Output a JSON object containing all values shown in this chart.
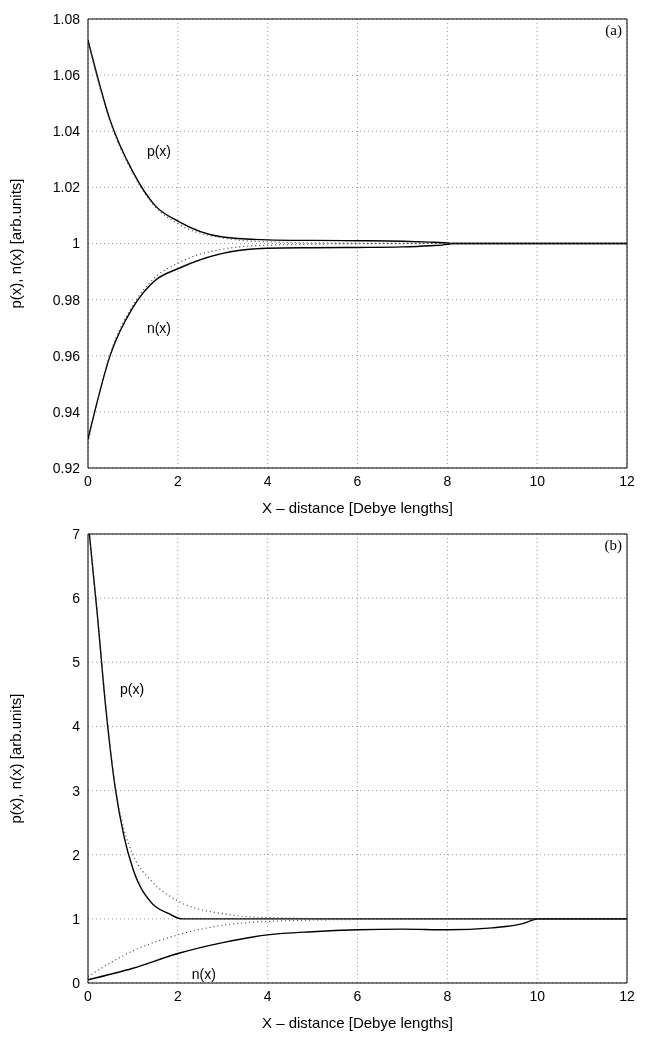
{
  "chart_data": [
    {
      "type": "line",
      "xlabel": "X – distance [Debye lengths]",
      "ylabel": "p(x), n(x) [arb.units]",
      "annotations": [
        "(a)"
      ],
      "xlim": [
        0,
        12
      ],
      "xticks": [
        0,
        2,
        4,
        6,
        8,
        10,
        12
      ],
      "ylim": [
        0.92,
        1.08
      ],
      "yticks": [
        0.92,
        0.94,
        0.96,
        0.98,
        1,
        1.02,
        1.04,
        1.06,
        1.08
      ],
      "grid": true,
      "legend": false,
      "marker": "none",
      "series": [
        {
          "name": "p(x)",
          "color": "#000000",
          "line_style": "solid",
          "x": [
            0,
            0.5,
            1,
            1.5,
            2,
            3,
            4,
            5,
            6,
            7,
            7.6,
            8,
            8.1,
            9,
            10,
            12
          ],
          "values": [
            1.0725,
            1.0436,
            1.0255,
            1.0134,
            1.008,
            1.0023,
            1.0013,
            1.0011,
            1.001,
            1.0008,
            1.0005,
            1.0002,
            1.0,
            1.0,
            1.0,
            1.0
          ]
        },
        {
          "name": "n(x)",
          "color": "#000000",
          "line_style": "solid",
          "x": [
            0,
            0.5,
            1,
            1.5,
            2,
            3,
            4,
            5,
            6,
            7,
            7.6,
            8,
            8.1,
            9,
            10,
            12
          ],
          "values": [
            0.9303,
            0.9604,
            0.9772,
            0.9869,
            0.991,
            0.9965,
            0.9983,
            0.9985,
            0.9986,
            0.9988,
            0.9992,
            0.9997,
            1.0,
            1.0,
            1.0,
            1.0
          ]
        },
        {
          "color": "#444444",
          "line_style": "dotted",
          "x": [
            0,
            0.5,
            1,
            1.5,
            2,
            3,
            4,
            6,
            8,
            12
          ],
          "values": [
            1.072,
            1.043,
            1.025,
            1.013,
            1.007,
            1.002,
            1.0006,
            1.0001,
            1.0,
            1.0
          ]
        },
        {
          "color": "#444444",
          "line_style": "dotted",
          "x": [
            0,
            0.5,
            1,
            1.5,
            2,
            3,
            4,
            6,
            8,
            12
          ],
          "values": [
            0.929,
            0.961,
            0.978,
            0.988,
            0.993,
            0.998,
            0.9994,
            0.9999,
            1.0,
            1.0
          ]
        }
      ]
    },
    {
      "type": "line",
      "xlabel": "X – distance [Debye lengths]",
      "ylabel": "p(x), n(x) [arb.units]",
      "annotations": [
        "(b)"
      ],
      "xlim": [
        0,
        12
      ],
      "xticks": [
        0,
        2,
        4,
        6,
        8,
        10,
        12
      ],
      "ylim": [
        0,
        7
      ],
      "yticks": [
        0,
        1,
        2,
        3,
        4,
        5,
        6,
        7
      ],
      "grid": true,
      "legend": false,
      "marker": "none",
      "series": [
        {
          "name": "p(x)",
          "color": "#000000",
          "line_style": "solid",
          "x": [
            0.03,
            0.2,
            0.4,
            0.6,
            0.8,
            1.0,
            1.4,
            1.8,
            2.1,
            4,
            8,
            12
          ],
          "values": [
            7.0,
            5.8,
            4.26,
            3.07,
            2.29,
            1.78,
            1.26,
            1.08,
            1.0,
            1.0,
            1.0,
            1.0
          ]
        },
        {
          "name": "n(x)",
          "color": "#000000",
          "line_style": "solid",
          "x": [
            0,
            1,
            2,
            3,
            4,
            5,
            6,
            7,
            8,
            9,
            9.7,
            9.9,
            10,
            12
          ],
          "values": [
            0.05,
            0.23,
            0.46,
            0.63,
            0.75,
            0.8,
            0.83,
            0.84,
            0.83,
            0.86,
            0.93,
            0.98,
            1.0,
            1.0
          ]
        },
        {
          "color": "#444444",
          "line_style": "dotted",
          "x": [
            0.03,
            0.2,
            0.4,
            0.6,
            0.8,
            1.0,
            1.4,
            2.0,
            3,
            4,
            6,
            12
          ],
          "values": [
            7.0,
            5.8,
            4.3,
            3.1,
            2.4,
            2.0,
            1.6,
            1.28,
            1.08,
            1.02,
            1.0,
            1.0
          ]
        },
        {
          "color": "#444444",
          "line_style": "dotted",
          "x": [
            0,
            1,
            2,
            3,
            4,
            6,
            12
          ],
          "values": [
            0.1,
            0.5,
            0.75,
            0.9,
            0.96,
            0.99,
            1.0
          ]
        }
      ]
    }
  ]
}
